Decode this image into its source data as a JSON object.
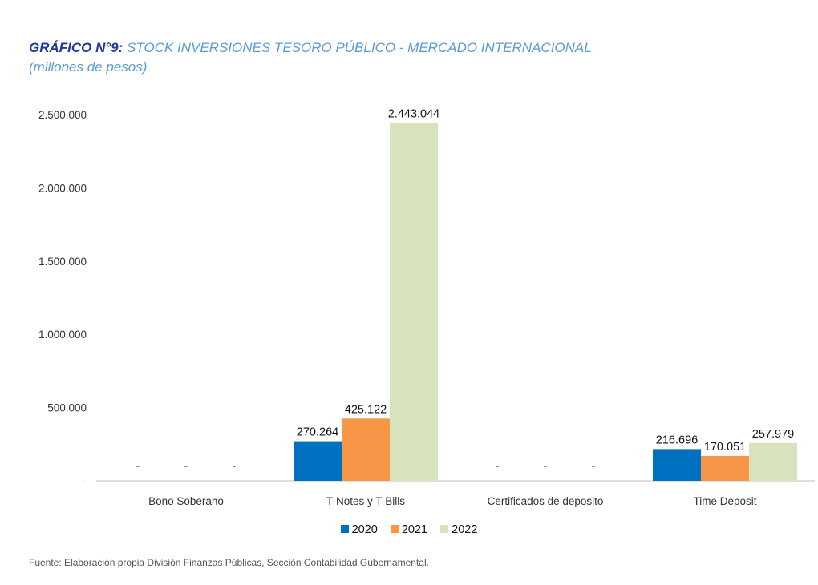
{
  "title": {
    "prefix": "GRÁFICO N°9:",
    "text": " STOCK INVERSIONES TESORO PÚBLICO - MERCADO INTERNACIONAL",
    "subtitle": "(millones de pesos)"
  },
  "source": "Fuente: Elaboración propia División Finanzas Públicas, Sección Contabilidad Gubernamental.",
  "colors": {
    "2020": "#0070c0",
    "2021": "#f79646",
    "2022": "#d6e3bc",
    "axis": "#bfbfbf",
    "title_prefix": "#1f3a93",
    "title_text": "#5b9bd5"
  },
  "chart_data": {
    "type": "bar",
    "categories": [
      "Bono Soberano",
      "T-Notes y T-Bills",
      "Certificados de deposito",
      "Time Deposit"
    ],
    "series": [
      {
        "name": "2020",
        "values": [
          0,
          270264,
          0,
          216696
        ],
        "labels": [
          "-",
          "270.264",
          "-",
          "216.696"
        ]
      },
      {
        "name": "2021",
        "values": [
          0,
          425122,
          0,
          170051
        ],
        "labels": [
          "-",
          "425.122",
          "-",
          "170.051"
        ]
      },
      {
        "name": "2022",
        "values": [
          0,
          2443044,
          0,
          257979
        ],
        "labels": [
          "-",
          "2.443.044",
          "-",
          "257.979"
        ]
      }
    ],
    "y_ticks": [
      {
        "value": 0,
        "label": "-"
      },
      {
        "value": 500000,
        "label": "500.000"
      },
      {
        "value": 1000000,
        "label": "1.000.000"
      },
      {
        "value": 1500000,
        "label": "1.500.000"
      },
      {
        "value": 2000000,
        "label": "2.000.000"
      },
      {
        "value": 2500000,
        "label": "2.500.000"
      }
    ],
    "ylim": [
      0,
      2500000
    ],
    "grid": false,
    "legend_position": "bottom"
  }
}
